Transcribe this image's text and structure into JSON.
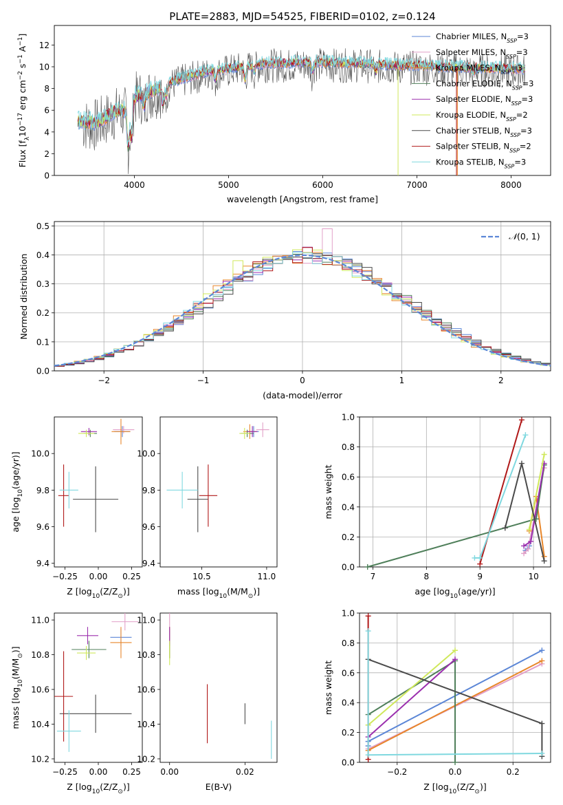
{
  "title": "PLATE=2883, MJD=54525, FIBERID=0102, z=0.124",
  "colors": {
    "chabrier_miles": "#5b86d6",
    "salpeter_miles": "#e2a0c8",
    "kroupa_miles": "#e8862a",
    "chabrier_elodie": "#4f7f5a",
    "salpeter_elodie": "#9b2fae",
    "kroupa_elodie": "#cfe85a",
    "chabrier_stelib": "#4a4a4a",
    "salpeter_stelib": "#b01818",
    "kroupa_stelib": "#7fd8df"
  },
  "chart_data": [
    {
      "id": "spectrum",
      "type": "line",
      "xlabel": "wavelength [Angstrom, rest frame]",
      "ylabel": "Flux [f$_\\lambda$10$^{-17}$ erg cm$^{-2}$ s$^{-1}$ A$^{-1}$]",
      "ylabel_parts": [
        "Flux [f",
        "λ",
        "10",
        "−17",
        " erg cm",
        "−2",
        " s",
        "−1",
        " A",
        "−1",
        "]"
      ],
      "xlim": [
        3150,
        8420
      ],
      "ylim": [
        0,
        13.8
      ],
      "xticks": [
        4000,
        5000,
        6000,
        7000,
        8000
      ],
      "yticks": [
        0,
        2,
        4,
        6,
        8,
        10,
        12
      ],
      "legend_position": "upper-right",
      "legend": [
        {
          "pre": "Chabrier MILES, N",
          "sub": "SSP",
          "post": "=3",
          "color_key": "chabrier_miles"
        },
        {
          "pre": "Salpeter MILES, N",
          "sub": "SSP",
          "post": "=3",
          "color_key": "salpeter_miles"
        },
        {
          "pre": "Kroupa MILES, N",
          "sub": "SSP",
          "post": "=3",
          "color_key": "kroupa_miles"
        },
        {
          "pre": "Chabrier ELODIE, N",
          "sub": "SSP",
          "post": "=3",
          "color_key": "chabrier_elodie"
        },
        {
          "pre": "Salpeter ELODIE, N",
          "sub": "SSP",
          "post": "=3",
          "color_key": "salpeter_elodie"
        },
        {
          "pre": "Kroupa ELODIE, N",
          "sub": "SSP",
          "post": "=2",
          "color_key": "kroupa_elodie"
        },
        {
          "pre": "Chabrier STELIB, N",
          "sub": "SSP",
          "post": "=3",
          "color_key": "chabrier_stelib"
        },
        {
          "pre": "Salpeter STELIB, N",
          "sub": "SSP",
          "post": "=2",
          "color_key": "salpeter_stelib"
        },
        {
          "pre": "Kroupa STELIB, N",
          "sub": "SSP",
          "post": "=3",
          "color_key": "kroupa_stelib"
        }
      ],
      "continuum": [
        [
          3400,
          4.9
        ],
        [
          3600,
          4.8
        ],
        [
          3800,
          5.9
        ],
        [
          3950,
          6.0
        ],
        [
          4000,
          7.2
        ],
        [
          4200,
          7.8
        ],
        [
          4400,
          8.6
        ],
        [
          4600,
          9.1
        ],
        [
          4800,
          9.6
        ],
        [
          5000,
          9.8
        ],
        [
          5200,
          10.1
        ],
        [
          5400,
          10.3
        ],
        [
          5600,
          10.3
        ],
        [
          5800,
          10.4
        ],
        [
          6000,
          10.4
        ],
        [
          6200,
          10.3
        ],
        [
          6400,
          10.3
        ],
        [
          6600,
          10.2
        ],
        [
          6800,
          10.1
        ],
        [
          7000,
          10.1
        ],
        [
          7200,
          10.0
        ],
        [
          7400,
          9.9
        ],
        [
          7600,
          9.9
        ],
        [
          7800,
          9.8
        ],
        [
          8000,
          9.8
        ],
        [
          8150,
          9.8
        ]
      ],
      "absorption_lines": [
        [
          3934,
          3.2
        ],
        [
          3969,
          3.0
        ],
        [
          4102,
          1.2
        ],
        [
          4304,
          1.8
        ],
        [
          4340,
          1.0
        ],
        [
          4861,
          0.9
        ],
        [
          5175,
          1.3
        ],
        [
          5270,
          0.6
        ],
        [
          5890,
          0.9
        ],
        [
          6563,
          0.7
        ],
        [
          7600,
          0.5
        ]
      ]
    },
    {
      "id": "residuals",
      "type": "histogram",
      "xlabel": "(data-model)/error",
      "ylabel": "Normed distribution",
      "xlim": [
        -2.5,
        2.5
      ],
      "ylim": [
        0,
        0.515
      ],
      "xticks": [
        -2,
        -1,
        0,
        1,
        2
      ],
      "yticks": [
        0.0,
        0.1,
        0.2,
        0.3,
        0.4,
        0.5
      ],
      "grid": true,
      "legend_label_main": "𝒩",
      "legend_label_args": "(0, 1)",
      "legend_position": "upper-right",
      "bin_width": 0.1,
      "reference_curve": "normal(0,1) dashed"
    },
    {
      "id": "age_vs_Z",
      "type": "scatter-errorbar",
      "xlabel_pre": "Z [log",
      "xlabel_sub": "10",
      "xlabel_post": "(Z/Z",
      "xlabel_sub2": "⊙",
      "xlabel_end": ")]",
      "ylabel_pre": "age  [log",
      "ylabel_sub": "10",
      "ylabel_post": "(age/yr)]",
      "xlim": [
        -0.33,
        0.33
      ],
      "ylim": [
        9.38,
        10.2
      ],
      "xticks": [
        -0.25,
        0.0,
        0.25
      ],
      "xtick_labels": [
        "−0.25",
        "0.00",
        "0.25"
      ],
      "yticks": [
        9.4,
        9.6,
        9.8,
        10.0
      ],
      "points": [
        {
          "key": "chabrier_miles",
          "x": 0.18,
          "y": 10.12,
          "xerr": 0.06,
          "yerr": 0.03
        },
        {
          "key": "salpeter_miles",
          "x": 0.19,
          "y": 10.13,
          "xerr": 0.08,
          "yerr": 0.02
        },
        {
          "key": "kroupa_miles",
          "x": 0.17,
          "y": 10.12,
          "xerr": 0.07,
          "yerr": 0.07
        },
        {
          "key": "chabrier_elodie",
          "x": -0.06,
          "y": 10.11,
          "xerr": 0.05,
          "yerr": 0.02
        },
        {
          "key": "salpeter_elodie",
          "x": -0.07,
          "y": 10.12,
          "xerr": 0.06,
          "yerr": 0.02
        },
        {
          "key": "kroupa_elodie",
          "x": -0.09,
          "y": 10.11,
          "xerr": 0.06,
          "yerr": 0.02
        },
        {
          "key": "chabrier_stelib",
          "x": -0.02,
          "y": 9.75,
          "xerr": 0.17,
          "yerr": 0.18
        },
        {
          "key": "salpeter_stelib",
          "x": -0.26,
          "y": 9.77,
          "xerr": 0.04,
          "yerr": 0.17
        },
        {
          "key": "kroupa_stelib",
          "x": -0.22,
          "y": 9.8,
          "xerr": 0.07,
          "yerr": 0.1
        }
      ]
    },
    {
      "id": "age_vs_mass",
      "type": "scatter-errorbar",
      "xlabel_pre": "mass [log",
      "xlabel_sub": "10",
      "xlabel_post": "(M/M",
      "xlabel_sub2": "⊙",
      "xlabel_end": ")]",
      "xlim": [
        10.18,
        11.08
      ],
      "ylim": [
        9.38,
        10.2
      ],
      "xticks": [
        10.5,
        11.0
      ],
      "xtick_labels": [
        "10.5",
        "11.0"
      ],
      "yticks": [
        9.4,
        9.6,
        9.8,
        10.0
      ],
      "points": [
        {
          "key": "chabrier_miles",
          "x": 10.9,
          "y": 10.12,
          "xerr": 0.04,
          "yerr": 0.03
        },
        {
          "key": "salpeter_miles",
          "x": 10.97,
          "y": 10.13,
          "xerr": 0.05,
          "yerr": 0.04
        },
        {
          "key": "kroupa_miles",
          "x": 10.87,
          "y": 10.12,
          "xerr": 0.05,
          "yerr": 0.04
        },
        {
          "key": "chabrier_elodie",
          "x": 10.85,
          "y": 10.11,
          "xerr": 0.05,
          "yerr": 0.02
        },
        {
          "key": "salpeter_elodie",
          "x": 10.89,
          "y": 10.12,
          "xerr": 0.04,
          "yerr": 0.03
        },
        {
          "key": "kroupa_elodie",
          "x": 10.83,
          "y": 10.11,
          "xerr": 0.04,
          "yerr": 0.03
        },
        {
          "key": "chabrier_stelib",
          "x": 10.47,
          "y": 9.75,
          "xerr": 0.08,
          "yerr": 0.18
        },
        {
          "key": "salpeter_stelib",
          "x": 10.55,
          "y": 9.77,
          "xerr": 0.07,
          "yerr": 0.17
        },
        {
          "key": "kroupa_stelib",
          "x": 10.35,
          "y": 9.8,
          "xerr": 0.12,
          "yerr": 0.1
        }
      ]
    },
    {
      "id": "weight_vs_age",
      "type": "line",
      "xlabel_pre": "age  [log",
      "xlabel_sub": "10",
      "xlabel_post": "(age/yr)]",
      "ylabel": "mass weight",
      "xlim": [
        6.75,
        10.32
      ],
      "ylim": [
        0,
        1.0
      ],
      "xticks": [
        7,
        8,
        9,
        10
      ],
      "yticks": [
        0.0,
        0.2,
        0.4,
        0.6,
        0.8,
        1.0
      ],
      "grid": true,
      "series": [
        {
          "key": "chabrier_miles",
          "x": [
            9.85,
            9.92,
            10.2
          ],
          "y": [
            0.11,
            0.14,
            0.68
          ]
        },
        {
          "key": "salpeter_miles",
          "x": [
            9.82,
            9.9,
            10.2
          ],
          "y": [
            0.09,
            0.12,
            0.66
          ]
        },
        {
          "key": "kroupa_miles",
          "x": [
            9.92,
            10.05,
            10.2
          ],
          "y": [
            0.24,
            0.47,
            0.07
          ]
        },
        {
          "key": "chabrier_elodie",
          "x": [
            6.9,
            10.05,
            10.2
          ],
          "y": [
            0.0,
            0.32,
            0.68
          ]
        },
        {
          "key": "salpeter_elodie",
          "x": [
            9.82,
            9.95,
            10.2
          ],
          "y": [
            0.14,
            0.17,
            0.69
          ]
        },
        {
          "key": "kroupa_elodie",
          "x": [
            9.92,
            10.2
          ],
          "y": [
            0.25,
            0.75
          ]
        },
        {
          "key": "chabrier_stelib",
          "x": [
            9.47,
            9.78,
            10.2
          ],
          "y": [
            0.26,
            0.69,
            0.04
          ]
        },
        {
          "key": "salpeter_stelib",
          "x": [
            9.0,
            9.78
          ],
          "y": [
            0.02,
            0.98
          ]
        },
        {
          "key": "kroupa_stelib",
          "x": [
            8.9,
            9.0,
            9.85
          ],
          "y": [
            0.06,
            0.06,
            0.88
          ]
        }
      ]
    },
    {
      "id": "mass_vs_Z",
      "type": "scatter-errorbar",
      "xlabel_pre": "Z [log",
      "xlabel_sub": "10",
      "xlabel_post": "(Z/Z",
      "xlabel_sub2": "⊙",
      "xlabel_end": ")]",
      "ylabel_pre": "mass [log",
      "ylabel_sub": "10",
      "ylabel_post": "(M/M",
      "ylabel_sub2": "⊙",
      "ylabel_end": ")]",
      "xlim": [
        -0.33,
        0.33
      ],
      "ylim": [
        10.18,
        11.04
      ],
      "xticks": [
        -0.25,
        0.0,
        0.25
      ],
      "xtick_labels": [
        "−0.25",
        "0.00",
        "0.25"
      ],
      "yticks": [
        10.2,
        10.4,
        10.6,
        10.8,
        11.0
      ],
      "points": [
        {
          "key": "chabrier_miles",
          "x": 0.17,
          "y": 10.9,
          "xerr": 0.08,
          "yerr": 0.05
        },
        {
          "key": "salpeter_miles",
          "x": 0.2,
          "y": 10.99,
          "xerr": 0.1,
          "yerr": 0.05
        },
        {
          "key": "kroupa_miles",
          "x": 0.17,
          "y": 10.87,
          "xerr": 0.08,
          "yerr": 0.09
        },
        {
          "key": "chabrier_elodie",
          "x": -0.07,
          "y": 10.83,
          "xerr": 0.13,
          "yerr": 0.05
        },
        {
          "key": "salpeter_elodie",
          "x": -0.08,
          "y": 10.91,
          "xerr": 0.08,
          "yerr": 0.05
        },
        {
          "key": "kroupa_elodie",
          "x": -0.09,
          "y": 10.81,
          "xerr": 0.07,
          "yerr": 0.04
        },
        {
          "key": "chabrier_stelib",
          "x": -0.02,
          "y": 10.46,
          "xerr": 0.27,
          "yerr": 0.11
        },
        {
          "key": "salpeter_stelib",
          "x": -0.26,
          "y": 10.56,
          "xerr": 0.07,
          "yerr": 0.26
        },
        {
          "key": "kroupa_stelib",
          "x": -0.22,
          "y": 10.36,
          "xerr": 0.09,
          "yerr": 0.12
        }
      ]
    },
    {
      "id": "mass_vs_ebv",
      "type": "scatter-errorbar",
      "xlabel": "E(B-V)",
      "xlim": [
        -0.0025,
        0.0285
      ],
      "ylim": [
        10.18,
        11.04
      ],
      "xticks": [
        0.0,
        0.02
      ],
      "xtick_labels": [
        "0.00",
        "0.02"
      ],
      "yticks": [
        10.2,
        10.4,
        10.6,
        10.8,
        11.0
      ],
      "points": [
        {
          "key": "chabrier_miles",
          "x": 0.0,
          "y": 10.9,
          "xerr": 0,
          "yerr": 0.05
        },
        {
          "key": "salpeter_miles",
          "x": 0.0,
          "y": 10.99,
          "xerr": 0,
          "yerr": 0.05
        },
        {
          "key": "kroupa_miles",
          "x": 0.0,
          "y": 10.87,
          "xerr": 0,
          "yerr": 0.09
        },
        {
          "key": "chabrier_elodie",
          "x": 0.0,
          "y": 10.83,
          "xerr": 0,
          "yerr": 0.05
        },
        {
          "key": "salpeter_elodie",
          "x": 0.0,
          "y": 10.91,
          "xerr": 0,
          "yerr": 0.05
        },
        {
          "key": "kroupa_elodie",
          "x": 0.0,
          "y": 10.81,
          "xerr": 0,
          "yerr": 0.07
        },
        {
          "key": "chabrier_stelib",
          "x": 0.02,
          "y": 10.46,
          "xerr": 0,
          "yerr": 0.06
        },
        {
          "key": "salpeter_stelib",
          "x": 0.01,
          "y": 10.46,
          "xerr": 0,
          "yerr": 0.17
        },
        {
          "key": "kroupa_stelib",
          "x": 0.027,
          "y": 10.31,
          "xerr": 0,
          "yerr": 0.11
        }
      ]
    },
    {
      "id": "weight_vs_Z",
      "type": "line",
      "xlabel_pre": "Z [log",
      "xlabel_sub": "10",
      "xlabel_post": "(Z/Z",
      "xlabel_sub2": "⊙",
      "xlabel_end": ")]",
      "ylabel": "mass weight",
      "xlim": [
        -0.33,
        0.33
      ],
      "ylim": [
        0,
        1.0
      ],
      "xticks": [
        -0.2,
        0.0,
        0.2
      ],
      "xtick_labels": [
        "−0.2",
        "0.0",
        "0.2"
      ],
      "yticks": [
        0.0,
        0.2,
        0.4,
        0.6,
        0.8,
        1.0
      ],
      "grid": true,
      "series": [
        {
          "key": "chabrier_miles",
          "x": [
            -0.3,
            -0.3,
            0.3
          ],
          "y": [
            0.11,
            0.14,
            0.75
          ]
        },
        {
          "key": "salpeter_miles",
          "x": [
            -0.3,
            0.3
          ],
          "y": [
            0.09,
            0.66
          ]
        },
        {
          "key": "kroupa_miles",
          "x": [
            -0.3,
            0.3
          ],
          "y": [
            0.08,
            0.68
          ]
        },
        {
          "key": "chabrier_elodie",
          "x": [
            -0.3,
            0.0,
            0.0
          ],
          "y": [
            0.32,
            0.68,
            0.0
          ]
        },
        {
          "key": "salpeter_elodie",
          "x": [
            -0.3,
            0.0
          ],
          "y": [
            0.17,
            0.69
          ]
        },
        {
          "key": "kroupa_elodie",
          "x": [
            -0.3,
            0.0
          ],
          "y": [
            0.25,
            0.75
          ]
        },
        {
          "key": "chabrier_stelib",
          "x": [
            -0.3,
            0.3,
            0.3
          ],
          "y": [
            0.69,
            0.26,
            0.04
          ]
        },
        {
          "key": "salpeter_stelib",
          "x": [
            -0.3,
            -0.3
          ],
          "y": [
            0.02,
            0.98
          ]
        },
        {
          "key": "kroupa_stelib",
          "x": [
            -0.3,
            -0.3,
            0.3
          ],
          "y": [
            0.88,
            0.05,
            0.06
          ]
        }
      ]
    }
  ]
}
